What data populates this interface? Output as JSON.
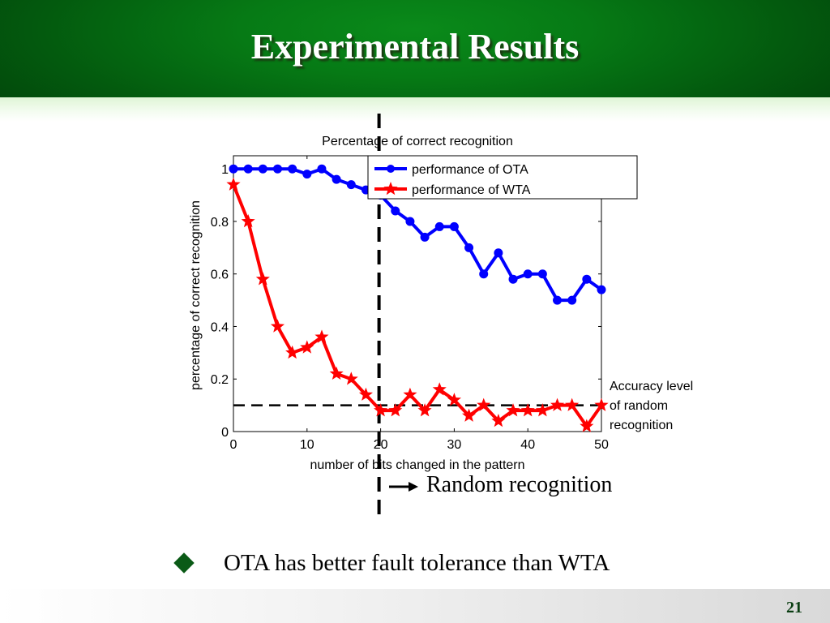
{
  "slide": {
    "title": "Experimental Results",
    "annotation_accuracy": [
      "Accuracy level",
      "of random",
      "recognition"
    ],
    "annotation_random": "Random recognition",
    "bullet": "OTA has better fault tolerance than WTA",
    "slide_number": "21",
    "colors": {
      "header": "#067a15",
      "bullet": "#0a5a16",
      "ota": "#0000ff",
      "wta": "#ff0000"
    },
    "icons": {
      "bullet": "diamond-icon",
      "arrow": "right-arrow-icon"
    }
  },
  "chart_data": {
    "type": "line",
    "title": "Percentage of correct recognition",
    "xlabel": "number of bits changed in the pattern",
    "ylabel": "percentage of correct recognition",
    "xlim": [
      0,
      50
    ],
    "ylim": [
      0,
      1.05
    ],
    "x_ticks": [
      0,
      10,
      20,
      30,
      40,
      50
    ],
    "y_ticks": [
      0,
      0.2,
      0.4,
      0.6,
      0.8,
      1
    ],
    "y_tick_labels": [
      "0",
      "0.2",
      "0.4",
      "0.6",
      "0.8",
      "1"
    ],
    "grid": false,
    "legend_position": "top-right",
    "x": [
      0,
      2,
      4,
      6,
      8,
      10,
      12,
      14,
      16,
      18,
      20,
      22,
      24,
      26,
      28,
      30,
      32,
      34,
      36,
      38,
      40,
      42,
      44,
      46,
      48,
      50
    ],
    "series": [
      {
        "name": "performance of OTA",
        "color": "#0000ff",
        "marker": "circle",
        "values": [
          1.0,
          1.0,
          1.0,
          1.0,
          1.0,
          0.98,
          1.0,
          0.96,
          0.94,
          0.92,
          0.9,
          0.84,
          0.8,
          0.74,
          0.78,
          0.78,
          0.7,
          0.6,
          0.68,
          0.58,
          0.6,
          0.6,
          0.5,
          0.5,
          0.58,
          0.54
        ]
      },
      {
        "name": "performance of WTA",
        "color": "#ff0000",
        "marker": "star",
        "values": [
          0.94,
          0.8,
          0.58,
          0.4,
          0.3,
          0.32,
          0.36,
          0.22,
          0.2,
          0.14,
          0.08,
          0.08,
          0.14,
          0.08,
          0.16,
          0.12,
          0.06,
          0.1,
          0.04,
          0.08,
          0.08,
          0.08,
          0.1,
          0.1,
          0.02,
          0.1
        ]
      }
    ],
    "reference_lines": [
      {
        "orientation": "horizontal",
        "value": 0.1,
        "style": "dashed"
      },
      {
        "orientation": "vertical",
        "value": 20,
        "style": "dashed"
      }
    ]
  }
}
